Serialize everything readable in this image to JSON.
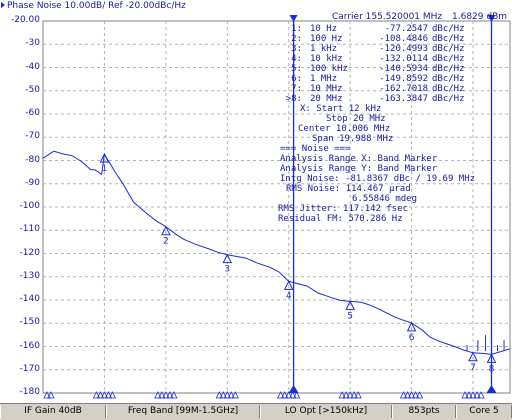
{
  "title": "Phase Noise 10.00dB/ Ref -20.00dBc/Hz",
  "carrier": "Carrier 155.520001 MHz",
  "carrier_level": "1.6829 dBm",
  "y_axis": {
    "labels": [
      "-20.00",
      "-30",
      "-40",
      "-50",
      "-60",
      "-70",
      "-80",
      "-90",
      "-100",
      "-110",
      "-120",
      "-130",
      "-140",
      "-150",
      "-160",
      "-170",
      "-180"
    ]
  },
  "markers": [
    {
      "id": "1:",
      "freq": "10 Hz",
      "value": "-77.2547",
      "unit": "dBc/Hz",
      "x_hz": 10,
      "y": -77.25
    },
    {
      "id": "2:",
      "freq": "100 Hz",
      "value": "-108.4846",
      "unit": "dBc/Hz",
      "x_hz": 100,
      "y": -108.48
    },
    {
      "id": "3:",
      "freq": "1 kHz",
      "value": "-120.4993",
      "unit": "dBc/Hz",
      "x_hz": 1000,
      "y": -120.5
    },
    {
      "id": "4:",
      "freq": "10 kHz",
      "value": "-132.0114",
      "unit": "dBc/Hz",
      "x_hz": 10000,
      "y": -132.01
    },
    {
      "id": "5:",
      "freq": "100 kHz",
      "value": "-140.5934",
      "unit": "dBc/Hz",
      "x_hz": 100000,
      "y": -140.59
    },
    {
      "id": "6:",
      "freq": "1 MHz",
      "value": "-149.8592",
      "unit": "dBc/Hz",
      "x_hz": 1000000,
      "y": -149.86
    },
    {
      "id": "7:",
      "freq": "10 MHz",
      "value": "-162.7018",
      "unit": "dBc/Hz",
      "x_hz": 10000000,
      "y": -162.7
    },
    {
      "id": ">8:",
      "freq": "20 MHz",
      "value": "-163.3847",
      "unit": "dBc/Hz",
      "x_hz": 20000000,
      "y": -163.38
    }
  ],
  "sweep": {
    "start": "X: Start 12 kHz",
    "stop": "Stop 20 MHz",
    "center": "Center 10.006 MHz",
    "span": "Span 19.988 MHz"
  },
  "noise": {
    "header": "Noise",
    "range_x": "Analysis Range X: Band Marker",
    "range_y": "Analysis Range Y: Band Marker",
    "intg": "Intg Noise: -81.8367 dBc / 19.69 MHz",
    "rms_noise": "RMS Noise: 114.467 µrad",
    "rms_noise_deg": "6.55846 mdeg",
    "rms_jitter": "RMS Jitter: 117.142 fsec",
    "residual_fm": "Residual FM: 570.286 Hz"
  },
  "chart_data": {
    "type": "line",
    "title": "Phase Noise 10.00dB/ Ref -20.00dBc/Hz",
    "x_scale": "log",
    "x_range_hz": [
      1,
      40000000
    ],
    "ylim": [
      -180,
      -20
    ],
    "series": [
      {
        "x_hz": [
          1,
          1.5,
          2,
          3,
          4,
          5,
          6,
          7,
          8,
          9,
          10,
          15,
          20,
          30,
          50,
          70,
          100,
          150,
          200,
          300,
          500,
          700,
          1000,
          2000,
          3000,
          5000,
          7000,
          10000,
          20000,
          30000,
          50000,
          70000,
          100000,
          150000,
          200000,
          300000,
          500000,
          700000,
          1000000,
          1500000,
          2000000,
          3000000,
          5000000,
          7000000,
          10000000,
          15000000,
          20000000,
          30000000,
          40000000
        ],
        "y": [
          -79,
          -76,
          -77,
          -78,
          -80,
          -82,
          -84,
          -84,
          -85,
          -86,
          -77.25,
          -85,
          -90,
          -98,
          -103,
          -106,
          -108.48,
          -112,
          -114,
          -116,
          -118,
          -119.5,
          -120.5,
          -122,
          -124,
          -126,
          -128,
          -132.01,
          -134,
          -137,
          -139,
          -140.2,
          -140.59,
          -141,
          -142,
          -144,
          -147,
          -148.5,
          -149.86,
          -153,
          -156,
          -158,
          -160,
          -161.5,
          -162.7,
          -163,
          -163.38,
          -162,
          -161
        ]
      }
    ]
  },
  "x_ticks_hz": [
    1,
    10,
    100,
    1000,
    10000,
    100000,
    1000000,
    10000000
  ],
  "band_markers_hz": [
    12000,
    20000000
  ],
  "status": {
    "if_gain": "IF Gain 40dB",
    "freq_band": "Freq Band [99M-1.5GHz]",
    "lo_opt": "LO Opt [>150kHz]",
    "points": "853pts",
    "cores": "Core 5"
  },
  "colors": {
    "trace": "#1a2ed8",
    "grid": "#b4b4b4",
    "text": "#1a1aa0",
    "band_marker": "#1a2ed8",
    "statusbar": "#d4d0c8"
  }
}
